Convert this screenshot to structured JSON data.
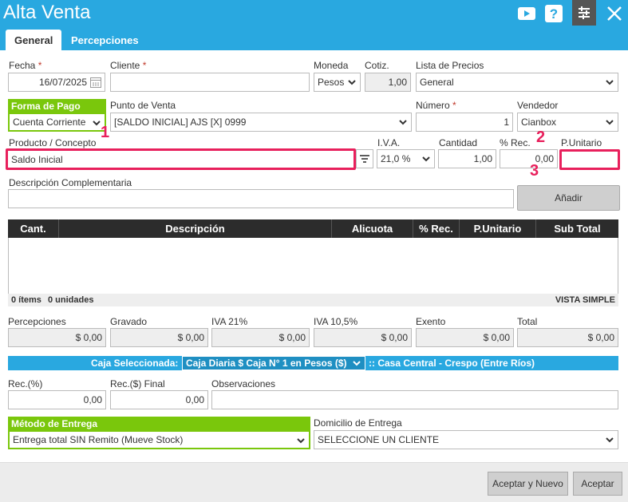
{
  "window": {
    "title": "Alta Venta"
  },
  "tabs": [
    {
      "label": "General"
    },
    {
      "label": "Percepciones"
    }
  ],
  "form": {
    "fecha": {
      "label": "Fecha",
      "value": "16/07/2025"
    },
    "cliente": {
      "label": "Cliente",
      "value": ""
    },
    "moneda": {
      "label": "Moneda",
      "value": "Pesos"
    },
    "cotiz": {
      "label": "Cotiz.",
      "value": "1,00"
    },
    "lista_precios": {
      "label": "Lista de Precios",
      "value": "General"
    },
    "forma_pago": {
      "label": "Forma de Pago",
      "value": "Cuenta Corriente"
    },
    "punto_venta": {
      "label": "Punto de Venta",
      "value": "[SALDO INICIAL] AJS [X] 0999"
    },
    "numero": {
      "label": "Número",
      "value": "1"
    },
    "vendedor": {
      "label": "Vendedor",
      "value": "Cianbox"
    },
    "producto": {
      "label": "Producto / Concepto",
      "value": "Saldo Inicial"
    },
    "iva": {
      "label": "I.V.A.",
      "value": "21,0 %"
    },
    "cantidad": {
      "label": "Cantidad",
      "value": "1,00"
    },
    "rec": {
      "label": "% Rec.",
      "value": "0,00"
    },
    "punitario": {
      "label": "P.Unitario",
      "value": ""
    },
    "descripcion": {
      "label": "Descripción Complementaria",
      "value": ""
    },
    "anadir": "Añadir"
  },
  "annotations": [
    "1",
    "2",
    "3"
  ],
  "table": {
    "columns": [
      "Cant.",
      "Descripción",
      "Alicuota",
      "% Rec.",
      "P.Unitario",
      "Sub Total"
    ],
    "footer_items": "0 ítems",
    "footer_units": "0 unidades",
    "view": "VISTA SIMPLE"
  },
  "totals": [
    {
      "label": "Percepciones",
      "value": "$ 0,00"
    },
    {
      "label": "Gravado",
      "value": "$ 0,00"
    },
    {
      "label": "IVA 21%",
      "value": "$ 0,00"
    },
    {
      "label": "IVA 10,5%",
      "value": "$ 0,00"
    },
    {
      "label": "Exento",
      "value": "$ 0,00"
    },
    {
      "label": "Total",
      "value": "$ 0,00"
    }
  ],
  "caja": {
    "label": "Caja Seleccionada:",
    "value": "Caja Diaria $ Caja N° 1 en Pesos ($)",
    "sucursal": ":: Casa Central - Crespo (Entre Ríos)"
  },
  "recargo": {
    "rec_pct": {
      "label": "Rec.(%)",
      "value": "0,00"
    },
    "rec_final": {
      "label": "Rec.($) Final",
      "value": "0,00"
    },
    "observaciones": {
      "label": "Observaciones",
      "value": ""
    }
  },
  "entrega": {
    "metodo": {
      "label": "Método de Entrega",
      "value": "Entrega total SIN Remito (Mueve Stock)"
    },
    "domicilio": {
      "label": "Domicilio de Entrega",
      "value": "SELECCIONE UN CLIENTE"
    }
  },
  "buttons": {
    "aceptar_nuevo": "Aceptar y Nuevo",
    "aceptar": "Aceptar"
  },
  "colors": {
    "header": "#29a8e0",
    "green": "#7ac70c",
    "highlight": "#e8205c"
  }
}
